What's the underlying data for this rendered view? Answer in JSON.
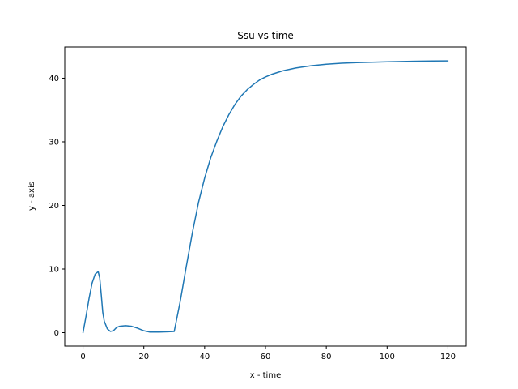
{
  "chart_data": {
    "type": "line",
    "title": "Ssu vs time",
    "xlabel": "x - time",
    "ylabel": "y - axis",
    "xlim": [
      -6,
      126
    ],
    "ylim": [
      -2.1,
      44.9
    ],
    "grid": false,
    "x_ticks": [
      0,
      20,
      40,
      60,
      80,
      100,
      120
    ],
    "y_ticks": [
      0,
      10,
      20,
      30,
      40
    ],
    "series": [
      {
        "color": "#1f77b4",
        "x": [
          0,
          1,
          2,
          3,
          4,
          5,
          5.5,
          6,
          6.5,
          7,
          8,
          9,
          10,
          11,
          12,
          14,
          16,
          18,
          20,
          22,
          25,
          28,
          30,
          32,
          34,
          36,
          38,
          40,
          42,
          44,
          46,
          48,
          50,
          52,
          54,
          56,
          58,
          60,
          62,
          64,
          66,
          68,
          70,
          72,
          75,
          80,
          85,
          90,
          95,
          100,
          105,
          110,
          115,
          120
        ],
        "y": [
          0,
          2.6,
          5.4,
          7.8,
          9.2,
          9.6,
          8.6,
          6.0,
          3.2,
          1.8,
          0.6,
          0.2,
          0.3,
          0.8,
          1.0,
          1.1,
          1.0,
          0.7,
          0.3,
          0.1,
          0.1,
          0.15,
          0.2,
          5.0,
          10.5,
          15.8,
          20.5,
          24.3,
          27.5,
          30.1,
          32.4,
          34.3,
          35.9,
          37.2,
          38.2,
          39.0,
          39.7,
          40.2,
          40.6,
          40.9,
          41.2,
          41.4,
          41.6,
          41.75,
          41.95,
          42.2,
          42.35,
          42.45,
          42.52,
          42.58,
          42.63,
          42.67,
          42.7,
          42.72
        ]
      }
    ]
  }
}
